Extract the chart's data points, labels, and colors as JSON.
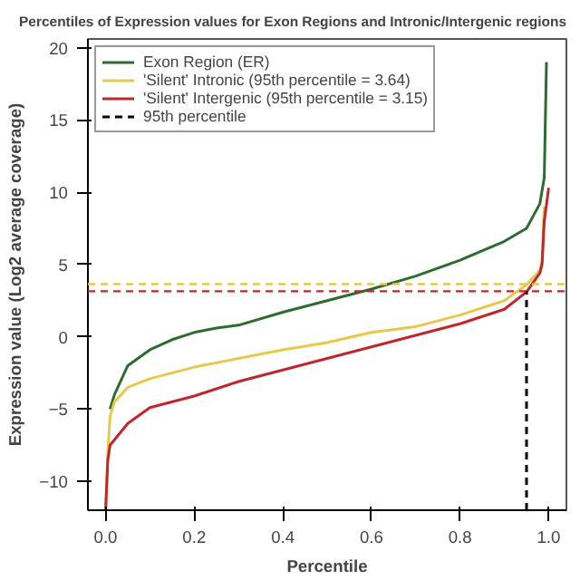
{
  "chart_data": {
    "type": "line",
    "title": "Percentiles of Expression values for Exon Regions and Intronic/Intergenic regions",
    "xlabel": "Percentile",
    "ylabel": "Expression value (Log2 average coverage)",
    "series": [
      {
        "name": "Exon Region (ER)",
        "color": "#2e6b2e",
        "x": [
          0.01,
          0.02,
          0.05,
          0.1,
          0.15,
          0.2,
          0.25,
          0.3,
          0.4,
          0.5,
          0.6,
          0.7,
          0.8,
          0.9,
          0.95,
          0.98,
          0.99,
          0.995
        ],
        "values": [
          -5,
          -4,
          -2,
          -0.9,
          -0.2,
          0.3,
          0.6,
          0.8,
          1.7,
          2.5,
          3.3,
          4.2,
          5.3,
          6.6,
          7.5,
          9.2,
          11,
          19
        ]
      },
      {
        "name": "'Silent' Intronic (95th percentile = 3.64)",
        "color": "#e6c84a",
        "x": [
          0.0,
          0.005,
          0.01,
          0.02,
          0.05,
          0.1,
          0.2,
          0.3,
          0.4,
          0.5,
          0.6,
          0.7,
          0.8,
          0.9,
          0.95,
          0.98,
          0.985,
          0.99
        ],
        "values": [
          -12,
          -8,
          -5.5,
          -4.5,
          -3.5,
          -2.9,
          -2.1,
          -1.5,
          -0.9,
          -0.4,
          0.3,
          0.7,
          1.5,
          2.5,
          3.6,
          4.6,
          5.2,
          9
        ]
      },
      {
        "name": "'Silent' Intergenic (95th percentile = 3.15)",
        "color": "#c0272d",
        "x": [
          0.0,
          0.005,
          0.01,
          0.05,
          0.1,
          0.2,
          0.3,
          0.4,
          0.5,
          0.6,
          0.7,
          0.8,
          0.9,
          0.95,
          0.98,
          0.985,
          0.99,
          1.0
        ],
        "values": [
          -12,
          -8.5,
          -7.5,
          -6,
          -4.9,
          -4.1,
          -3.1,
          -2.3,
          -1.5,
          -0.7,
          0.1,
          0.9,
          1.9,
          3.1,
          4.4,
          5,
          8,
          10.3
        ]
      },
      {
        "name": "95th percentile",
        "color": "#000000",
        "line_style": "dashed",
        "x": [
          0.95,
          0.95
        ],
        "values": [
          -12,
          3.15
        ]
      }
    ],
    "ref_lines": [
      {
        "axis": "y",
        "value": 3.64,
        "color": "#e6c84a",
        "line_style": "dashed"
      },
      {
        "axis": "y",
        "value": 3.15,
        "color": "#c0272d",
        "line_style": "dashed"
      }
    ],
    "xlim": [
      -0.04,
      1.04
    ],
    "ylim": [
      -12,
      20.6
    ],
    "xticks": [
      {
        "value": 0,
        "label": "0.0"
      },
      {
        "value": 0.2,
        "label": "0.2"
      },
      {
        "value": 0.4,
        "label": "0.4"
      },
      {
        "value": 0.6,
        "label": "0.6"
      },
      {
        "value": 0.8,
        "label": "0.8"
      },
      {
        "value": 1,
        "label": "1.0"
      }
    ],
    "yticks": [
      -10,
      -5,
      0,
      5,
      10,
      15,
      20
    ],
    "legend": "top left",
    "grid": false,
    "line_style": "solid"
  }
}
